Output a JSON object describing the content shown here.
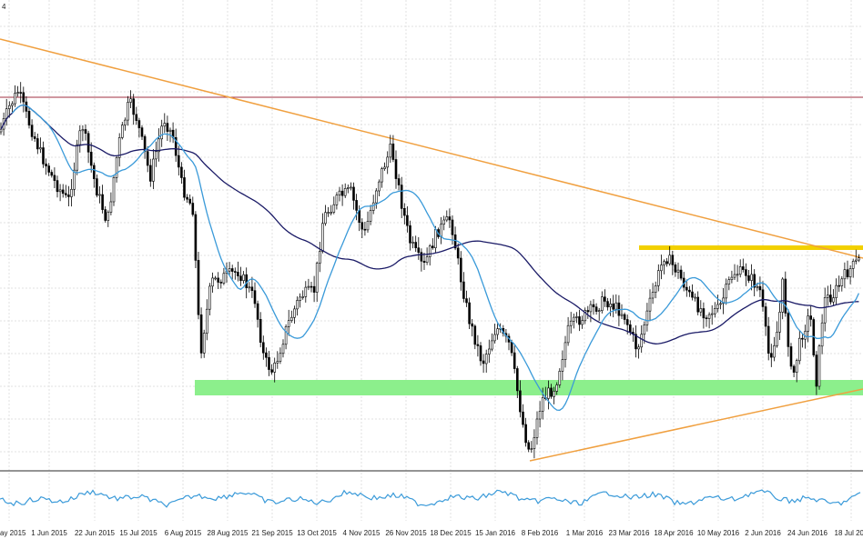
{
  "chart_data": {
    "type": "candlestick",
    "title": "",
    "x_tick_labels": [
      "ay 2015",
      "1 Jun 2015",
      "22 Jun 2015",
      "15 Jul 2015",
      "6 Aug 2015",
      "28 Aug 2015",
      "21 Sep 2015",
      "13 Oct 2015",
      "4 Nov 2015",
      "26 Nov 2015",
      "18 Dec 2015",
      "15 Jan 2016",
      "8 Feb 2016",
      "1 Mar 2016",
      "23 Mar 2016",
      "18 Apr 2016",
      "10 May 2016",
      "2 Jun 2016",
      "24 Jun 2016",
      "18 Jul 201"
    ],
    "top_corner_label": "4",
    "y_axis_labels": "not visible (cropped)",
    "grid": true,
    "indicator_panel": "oscillator line below main chart",
    "colors": {
      "candle": "#000000",
      "fast_ma": "#3a9ad9",
      "slow_ma": "#1a1a66",
      "trendline": "#f0a040",
      "horizontal_resistance": "#a03040",
      "resistance_zone": "#f2d000",
      "support_zone": "#8cef8c",
      "oscillator": "#3a9ad9",
      "grid": "#d8d8d8"
    }
  }
}
